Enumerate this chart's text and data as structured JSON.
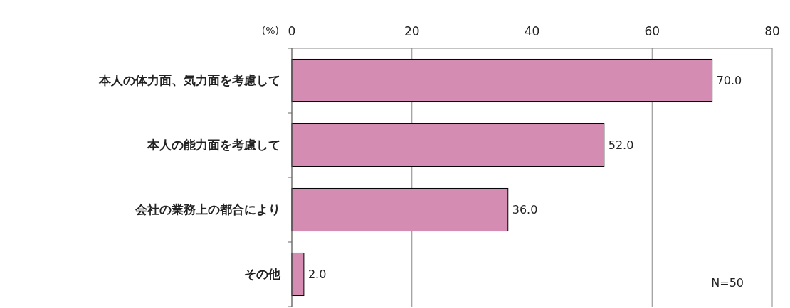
{
  "chart_data": {
    "type": "bar",
    "orientation": "horizontal",
    "xlabel": "(%)",
    "categories": [
      "本人の体力面、気力面を考慮して",
      "本人の能力面を考慮して",
      "会社の業務上の都合により",
      "その他"
    ],
    "values": [
      70.0,
      52.0,
      36.0,
      2.0
    ],
    "value_labels": [
      "70.0",
      "52.0",
      "36.0",
      "2.0"
    ],
    "color": "#d58cb3",
    "xlim": [
      0,
      80
    ],
    "xticks": [
      0,
      20,
      40,
      60,
      80
    ],
    "grid": "x",
    "annotations": [
      "N=50"
    ]
  }
}
